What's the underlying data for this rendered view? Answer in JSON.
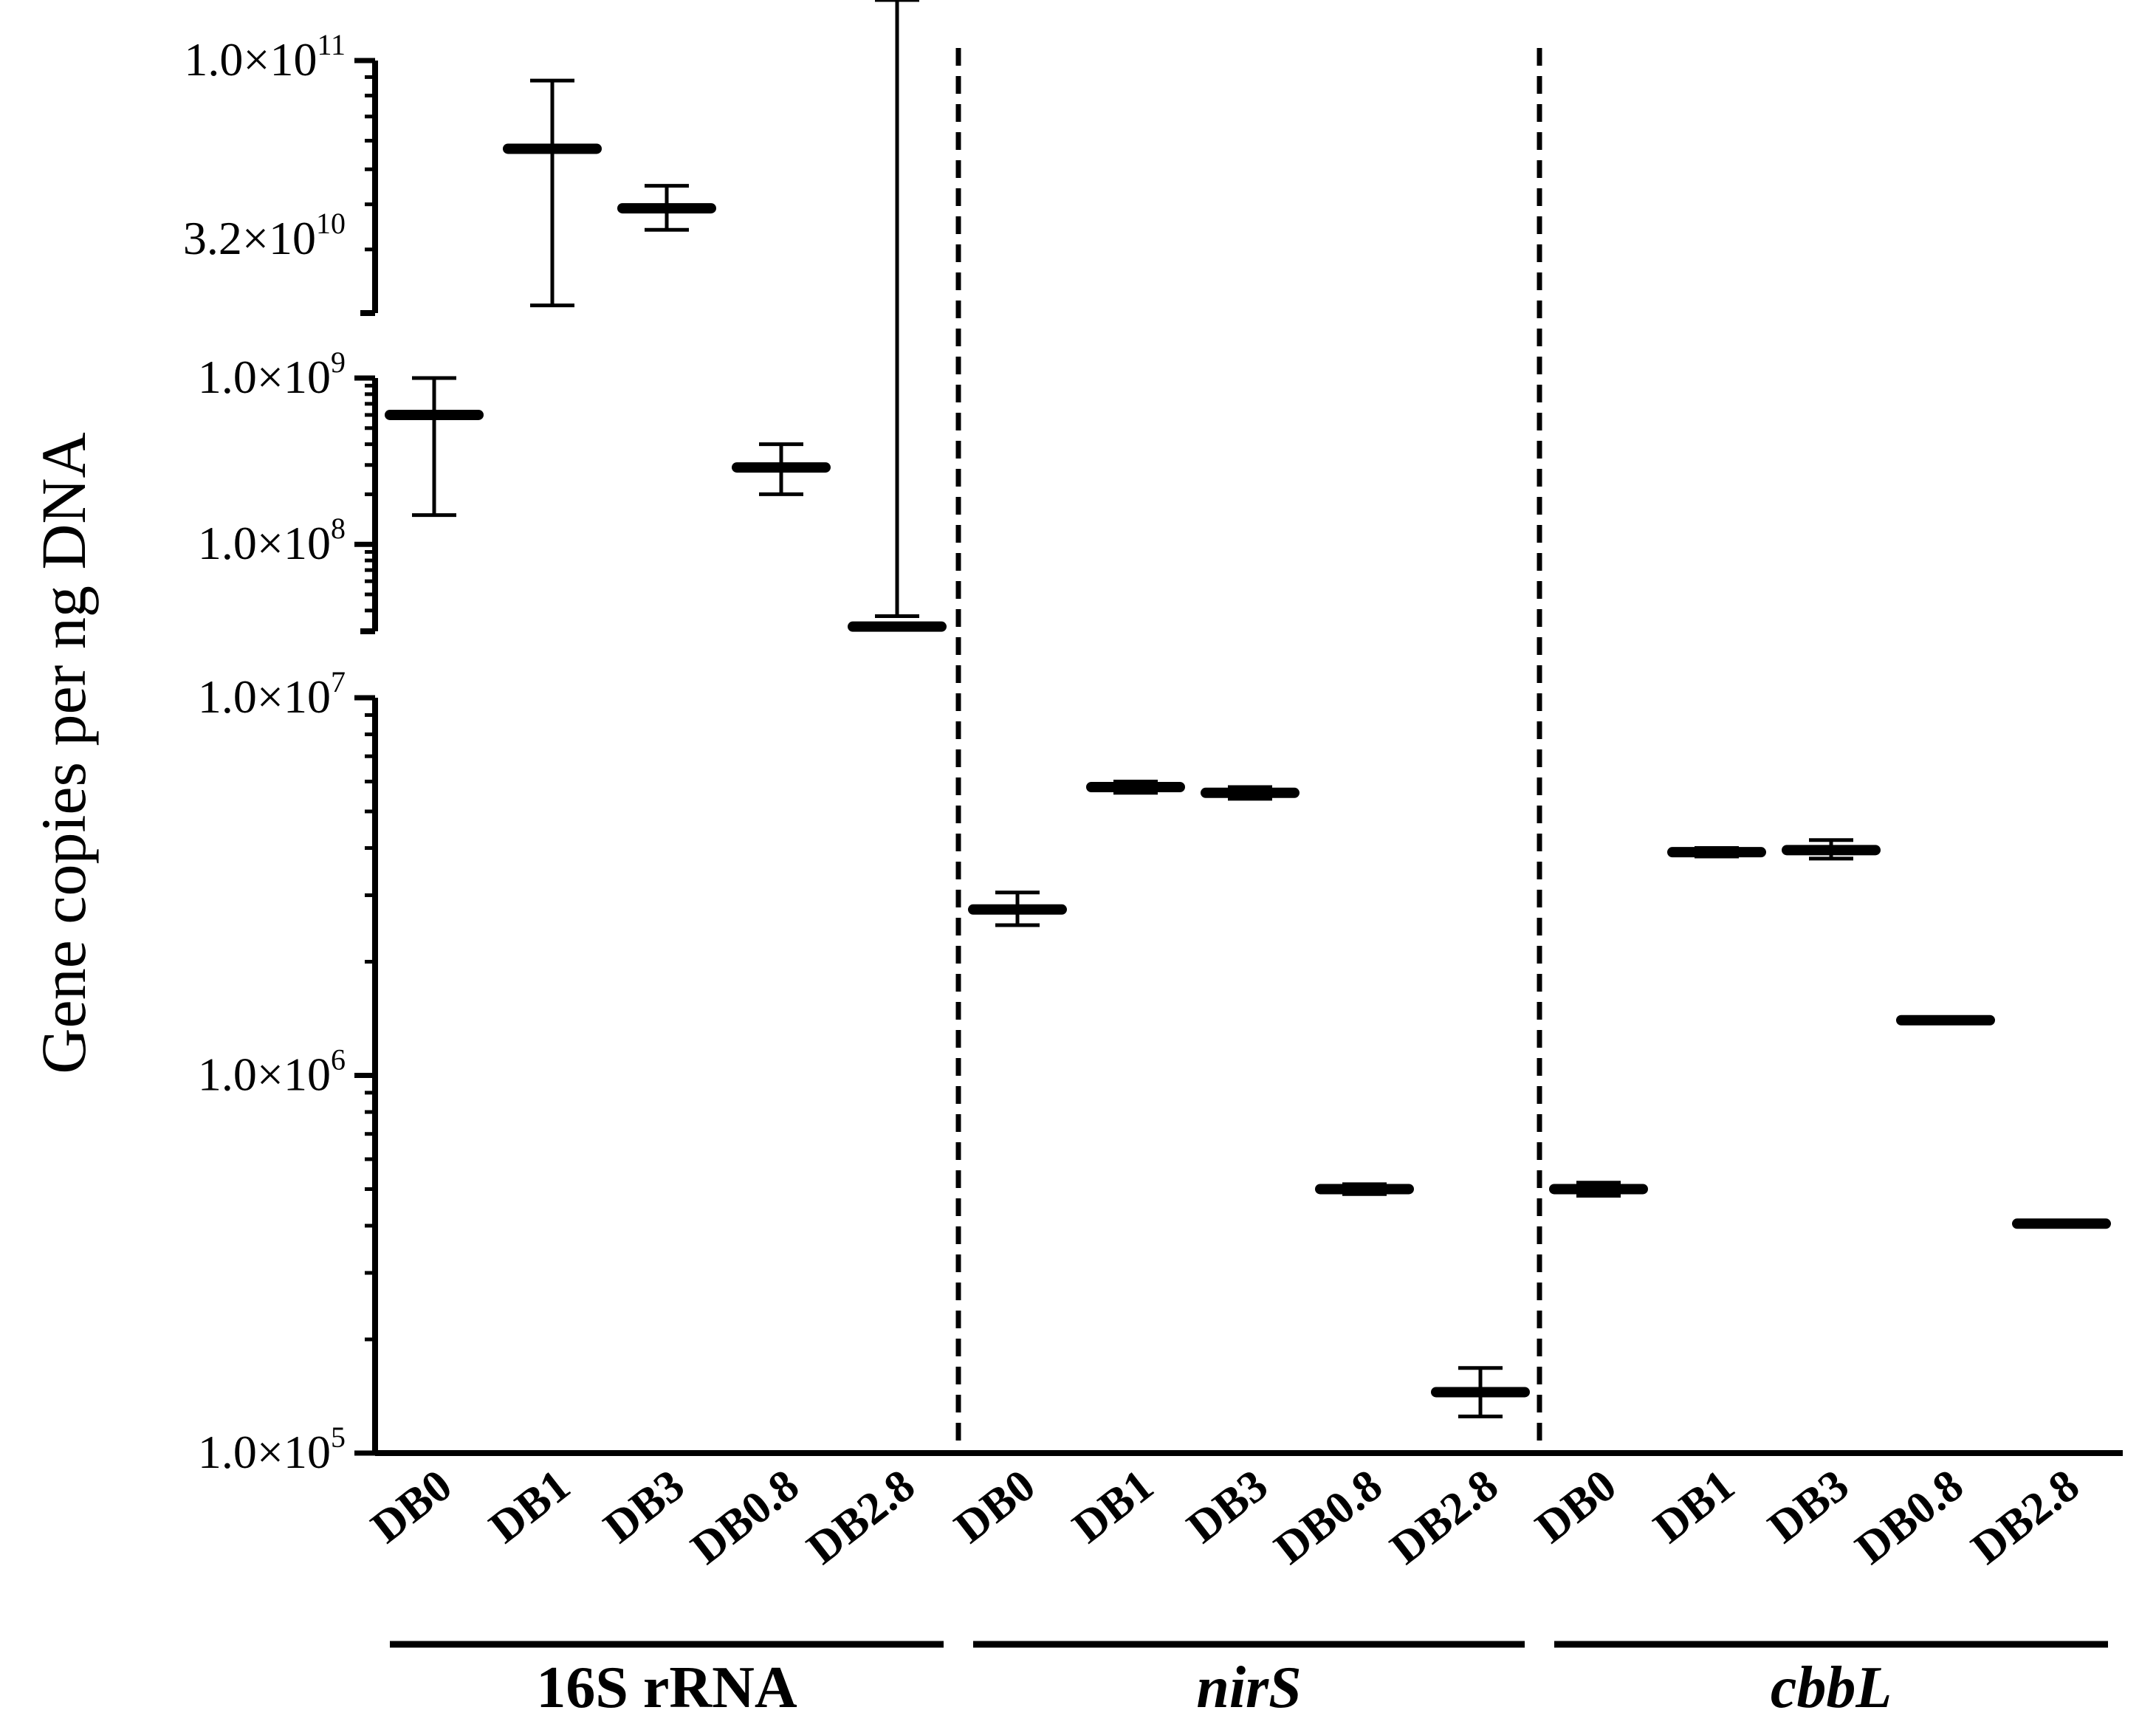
{
  "chart_data": {
    "type": "scatter",
    "ylabel": "Gene copies per ng DNA",
    "y_scale": "log (segmented axis with two breaks)",
    "y_segments": [
      {
        "ylim": [
          100000,
          10000000
        ],
        "ticks": [
          "1.0×10^5",
          "1.0×10^6",
          "1.0×10^7"
        ]
      },
      {
        "ylim": [
          30000000,
          1000000000
        ],
        "ticks": [
          "1.0×10^8",
          "1.0×10^9"
        ]
      },
      {
        "ylim": [
          20000000000,
          100000000000
        ],
        "ticks": [
          "3.2×10^10",
          "1.0×10^11"
        ]
      }
    ],
    "tick_labels": [
      {
        "mantissa": "1.0×10",
        "exp": "5",
        "value": 100000
      },
      {
        "mantissa": "1.0×10",
        "exp": "6",
        "value": 1000000
      },
      {
        "mantissa": "1.0×10",
        "exp": "7",
        "value": 10000000
      },
      {
        "mantissa": "1.0×10",
        "exp": "8",
        "value": 100000000
      },
      {
        "mantissa": "1.0×10",
        "exp": "9",
        "value": 1000000000
      },
      {
        "mantissa": "3.2×10",
        "exp": "10",
        "value": 32000000000
      },
      {
        "mantissa": "1.0×10",
        "exp": "11",
        "value": 100000000000
      }
    ],
    "categories": [
      "DB0",
      "DB1",
      "DB3",
      "DB0.8",
      "DB2.8"
    ],
    "groups": [
      {
        "label": "16S rRNA",
        "italic": false,
        "points": [
          {
            "category": "DB0",
            "mean": 600000000,
            "low": 150000000,
            "high": 1000000000
          },
          {
            "category": "DB1",
            "mean": 57000000000,
            "low": 21000000000,
            "high": 88000000000
          },
          {
            "category": "DB3",
            "mean": 39000000000,
            "low": 34000000000,
            "high": 45000000000
          },
          {
            "category": "DB0.8",
            "mean": 290000000,
            "low": 200000000,
            "high": 400000000
          },
          {
            "category": "DB2.8",
            "mean": 32000000,
            "low": 28000000,
            "high": 37000000
          }
        ]
      },
      {
        "label": "nirS",
        "italic": true,
        "points": [
          {
            "category": "DB0",
            "mean": 2750000,
            "low": 2500000,
            "high": 3050000
          },
          {
            "category": "DB1",
            "mean": 5800000,
            "low": 5600000,
            "high": 6000000
          },
          {
            "category": "DB3",
            "mean": 5600000,
            "low": 5400000,
            "high": 5800000
          },
          {
            "category": "DB0.8",
            "mean": 500000,
            "low": 485000,
            "high": 515000
          },
          {
            "category": "DB2.8",
            "mean": 145000,
            "low": 125000,
            "high": 168000
          }
        ]
      },
      {
        "label": "cbbL",
        "italic": true,
        "points": [
          {
            "category": "DB0",
            "mean": 500000,
            "low": 480000,
            "high": 520000
          },
          {
            "category": "DB1",
            "mean": 3900000,
            "low": 3800000,
            "high": 4000000
          },
          {
            "category": "DB3",
            "mean": 3950000,
            "low": 3750000,
            "high": 4200000
          },
          {
            "category": "DB0.8",
            "mean": 1400000,
            "low": 1390000,
            "high": 1410000
          },
          {
            "category": "DB2.8",
            "mean": 405000,
            "low": 400000,
            "high": 410000
          }
        ]
      }
    ],
    "grid": false,
    "legend": "none"
  }
}
